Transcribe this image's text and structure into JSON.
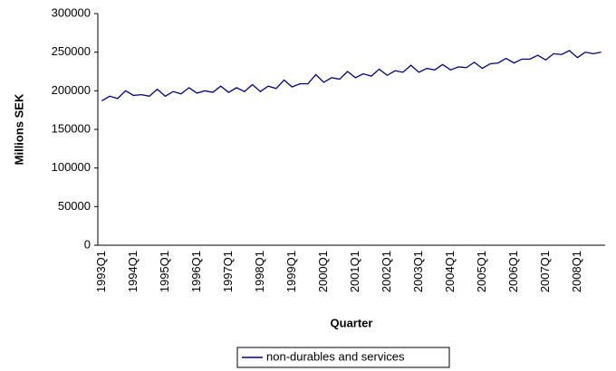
{
  "chart_data": {
    "type": "line",
    "x_label": "Quarter",
    "y_label": "Millions SEK",
    "categories": [
      "1993Q1",
      null,
      null,
      null,
      "1994Q1",
      null,
      null,
      null,
      "1995Q1",
      null,
      null,
      null,
      "1996Q1",
      null,
      null,
      null,
      "1997Q1",
      null,
      null,
      null,
      "1998Q1",
      null,
      null,
      null,
      "1999Q1",
      null,
      null,
      null,
      "2000Q1",
      null,
      null,
      null,
      "2001Q1",
      null,
      null,
      null,
      "2002Q1",
      null,
      null,
      null,
      "2003Q1",
      null,
      null,
      null,
      "2004Q1",
      null,
      null,
      null,
      "2005Q1",
      null,
      null,
      null,
      "2006Q1",
      null,
      null,
      null,
      "2007Q1",
      null,
      null,
      null,
      "2008Q1",
      null,
      null,
      null
    ],
    "series": [
      {
        "name": "non-durables and services",
        "color": "#000080",
        "values": [
          187000,
          193000,
          190000,
          200000,
          194000,
          195000,
          193000,
          202000,
          193000,
          199000,
          196000,
          204000,
          197000,
          200000,
          198000,
          206000,
          198000,
          204000,
          199000,
          208000,
          199000,
          206000,
          203000,
          214000,
          205000,
          209000,
          209000,
          221000,
          211000,
          217000,
          215000,
          225000,
          217000,
          222000,
          219000,
          228000,
          220000,
          226000,
          224000,
          233000,
          224000,
          229000,
          227000,
          234000,
          227000,
          231000,
          230000,
          237000,
          229000,
          235000,
          236000,
          242000,
          236000,
          241000,
          241000,
          246000,
          240000,
          248000,
          247000,
          252000,
          243000,
          250000,
          248000,
          250000
        ]
      }
    ],
    "ylim": [
      0,
      300000
    ],
    "yticks": [
      0,
      50000,
      100000,
      150000,
      200000,
      250000,
      300000
    ],
    "legend": "bottom"
  }
}
